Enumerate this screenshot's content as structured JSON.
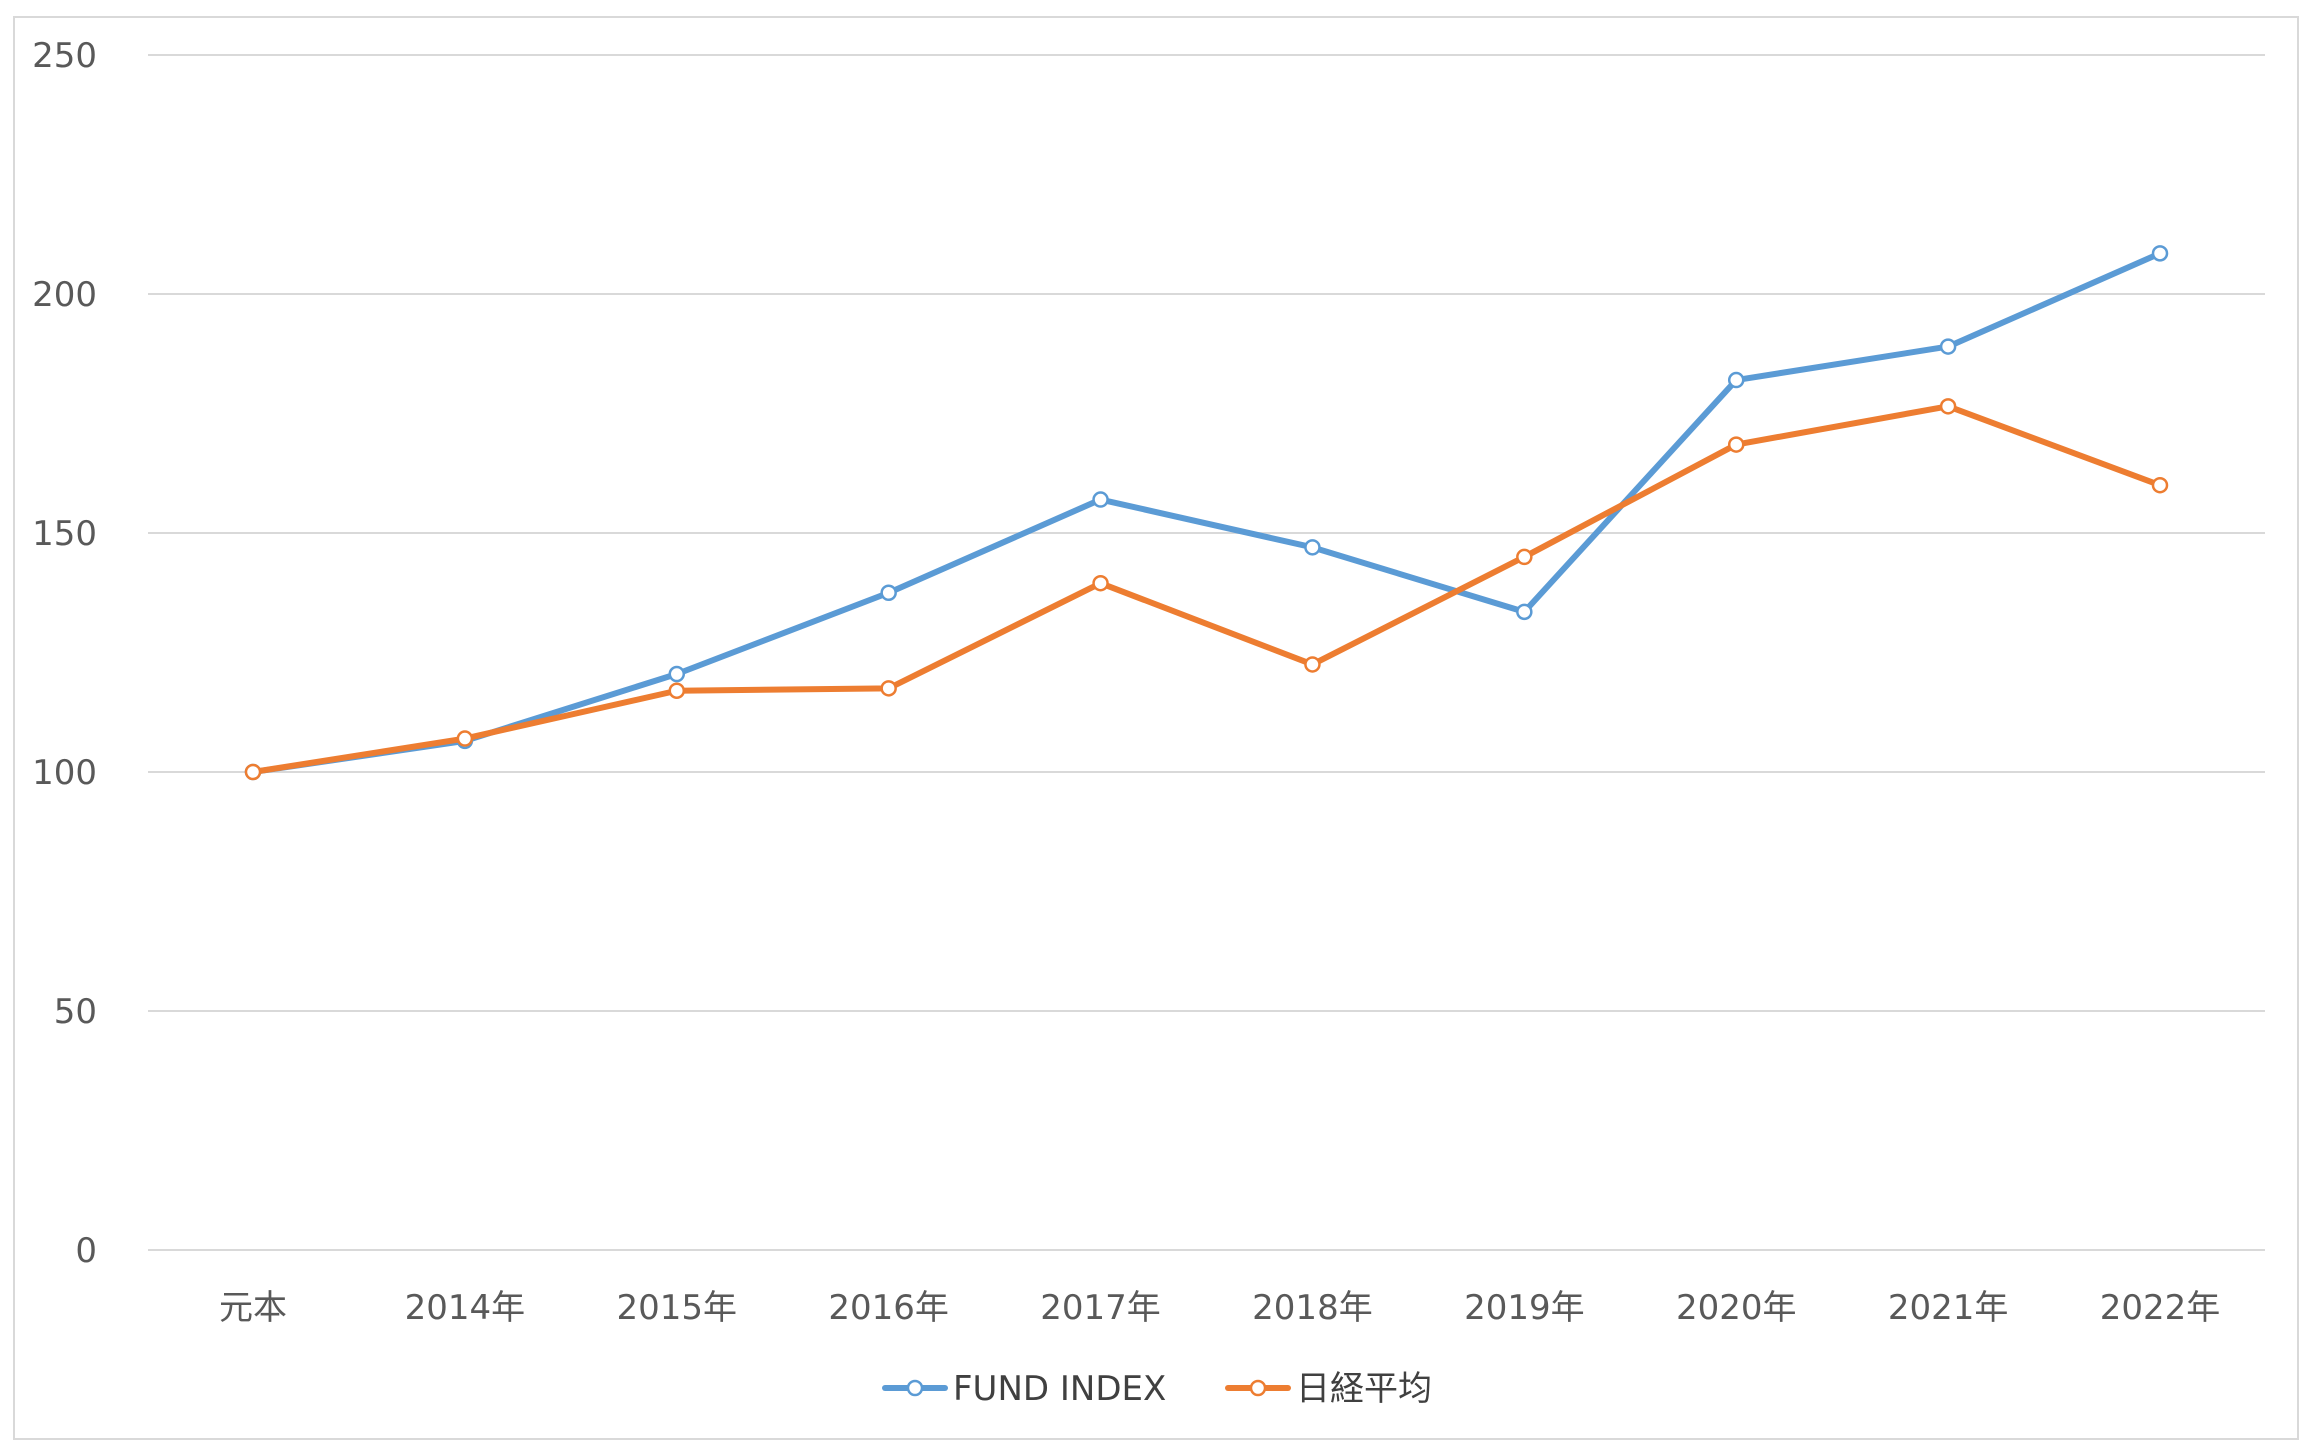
{
  "chart_data": {
    "type": "line",
    "categories": [
      "元本",
      "2014年",
      "2015年",
      "2016年",
      "2017年",
      "2018年",
      "2019年",
      "2020年",
      "2021年",
      "2022年"
    ],
    "series": [
      {
        "name": "FUND INDEX",
        "color": "#5b9bd5",
        "values": [
          100,
          106.5,
          120.5,
          137.5,
          157,
          147,
          133.5,
          182,
          189,
          208.5
        ]
      },
      {
        "name": "日経平均",
        "color": "#ed7d31",
        "values": [
          100,
          107,
          117,
          117.5,
          139.5,
          122.5,
          145,
          168.5,
          176.5,
          160
        ]
      }
    ],
    "yticks": [
      "0",
      "50",
      "100",
      "150",
      "200",
      "250"
    ],
    "ylim": [
      0,
      250
    ],
    "grid": true,
    "legend_position": "bottom",
    "title": "",
    "xlabel": "",
    "ylabel": ""
  }
}
